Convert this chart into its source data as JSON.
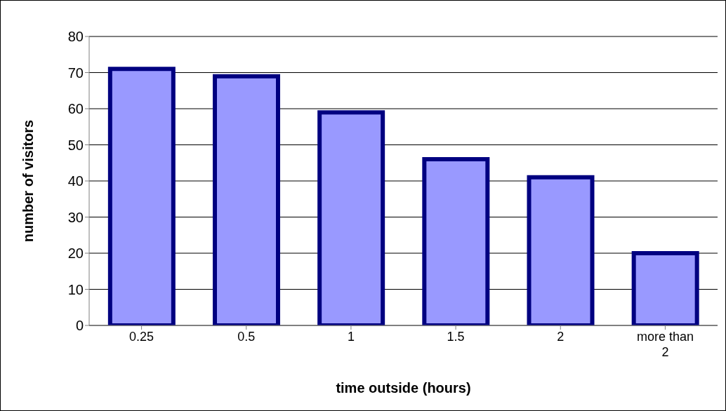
{
  "chart_data": {
    "type": "bar",
    "xlabel": "time outside (hours)",
    "ylabel": "number of visitors",
    "categories": [
      "0.25",
      "0.5",
      "1",
      "1.5",
      "2",
      "more than 2"
    ],
    "values": [
      71,
      69,
      59,
      46,
      41,
      20
    ],
    "color": "#9999ff",
    "ylim": [
      0,
      80
    ],
    "yticks": [
      0,
      10,
      20,
      30,
      40,
      50,
      60,
      70,
      80
    ],
    "grid": "y"
  }
}
